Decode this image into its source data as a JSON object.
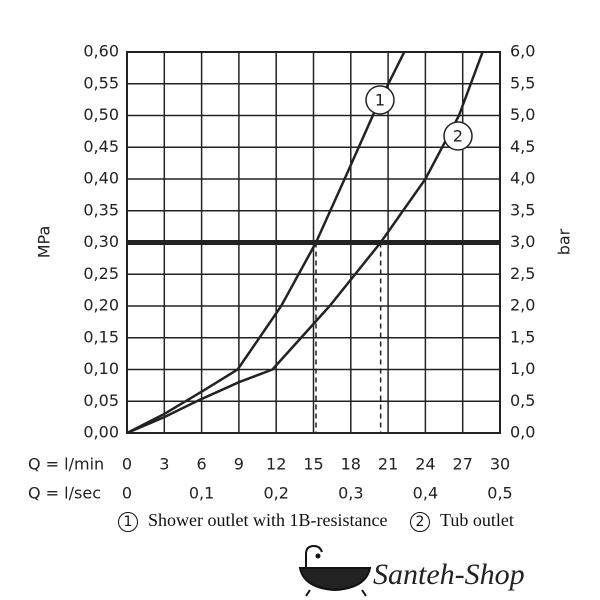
{
  "chart_data": {
    "type": "line",
    "y_label": "MPa",
    "y2_label": "bar",
    "x_label": "Q = l/min",
    "x2_label": "Q = l/sec",
    "xlim": [
      0,
      30
    ],
    "xticks": [
      0,
      3,
      6,
      9,
      12,
      15,
      18,
      21,
      24,
      27,
      30
    ],
    "x2lim": [
      0,
      0.5
    ],
    "x2ticks": [
      0,
      {
        "value": 0.1,
        "label": "0,1"
      },
      {
        "value": 0.2,
        "label": "0,2"
      },
      {
        "value": 0.3,
        "label": "0,3"
      },
      {
        "value": 0.4,
        "label": "0,4"
      },
      {
        "value": 0.5,
        "label": "0,5"
      }
    ],
    "ylim": [
      0,
      0.6
    ],
    "yticks": [
      {
        "value": 0,
        "label": "0,00"
      },
      {
        "value": 0.05,
        "label": "0,05"
      },
      {
        "value": 0.1,
        "label": "0,10"
      },
      {
        "value": 0.15,
        "label": "0,15"
      },
      {
        "value": 0.2,
        "label": "0,20"
      },
      {
        "value": 0.25,
        "label": "0,25"
      },
      {
        "value": 0.3,
        "label": "0,30"
      },
      {
        "value": 0.35,
        "label": "0,35"
      },
      {
        "value": 0.4,
        "label": "0,40"
      },
      {
        "value": 0.45,
        "label": "0,45"
      },
      {
        "value": 0.5,
        "label": "0,50"
      },
      {
        "value": 0.55,
        "label": "0,55"
      },
      {
        "value": 0.6,
        "label": "0,60"
      }
    ],
    "y2lim": [
      0,
      6
    ],
    "y2ticks": [
      {
        "value": 0,
        "label": "0,0"
      },
      {
        "value": 0.5,
        "label": "0,5"
      },
      {
        "value": 1,
        "label": "1,0"
      },
      {
        "value": 1.5,
        "label": "1,5"
      },
      {
        "value": 2,
        "label": "2,0"
      },
      {
        "value": 2.5,
        "label": "2,5"
      },
      {
        "value": 3,
        "label": "3,0"
      },
      {
        "value": 3.5,
        "label": "3,5"
      },
      {
        "value": 4,
        "label": "4,0"
      },
      {
        "value": 4.5,
        "label": "4,5"
      },
      {
        "value": 5,
        "label": "5,0"
      },
      {
        "value": 5.5,
        "label": "5,5"
      },
      {
        "value": 6,
        "label": "6,0"
      }
    ],
    "grid": true,
    "reference_y": 0.3,
    "dashed_x": [
      15.2,
      20.4
    ],
    "series": [
      {
        "label": "1",
        "name": "Shower outlet with 1B-resistance",
        "color": "#222222",
        "x": [
          0,
          3,
          6,
          8.9,
          12.4,
          15.2,
          17.5,
          20,
          22.3
        ],
        "values": [
          0,
          0.03,
          0.065,
          0.1,
          0.2,
          0.3,
          0.4,
          0.51,
          0.6
        ]
      },
      {
        "label": "2",
        "name": "Tub outlet",
        "color": "#222222",
        "x": [
          0,
          3,
          5.6,
          9,
          11.7,
          14,
          16.3,
          20.4,
          24,
          26.7,
          28.6
        ],
        "values": [
          0,
          0.025,
          0.05,
          0.08,
          0.1,
          0.15,
          0.2,
          0.3,
          0.4,
          0.5,
          0.6
        ]
      }
    ],
    "watermark": "Santeh-Shop"
  }
}
